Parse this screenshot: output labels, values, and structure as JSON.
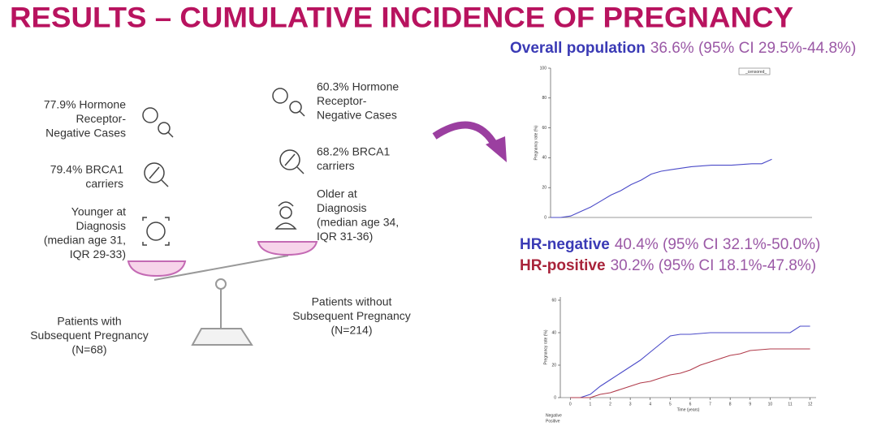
{
  "header": {
    "title": "RESULTS – CUMULATIVE INCIDENCE OF PREGNANCY"
  },
  "with_pregnancy": {
    "facts": [
      {
        "lines": [
          "77.9% Hormone",
          "Receptor-",
          "Negative Cases"
        ]
      },
      {
        "lines": [
          "79.4% BRCA1",
          "carriers"
        ]
      },
      {
        "lines": [
          "Younger at",
          "Diagnosis",
          "(median age 31,",
          "IQR 29-33)"
        ]
      }
    ],
    "group": {
      "lines": [
        "Patients with",
        "Subsequent Pregnancy",
        "(N=68)"
      ]
    }
  },
  "without_pregnancy": {
    "facts": [
      {
        "lines": [
          "60.3% Hormone",
          "Receptor-",
          "Negative Cases"
        ]
      },
      {
        "lines": [
          "68.2% BRCA1",
          "carriers"
        ]
      },
      {
        "lines": [
          "Older at",
          "Diagnosis",
          "(median age 34,",
          "IQR 31-36)"
        ]
      }
    ],
    "group": {
      "lines": [
        "Patients without",
        "Subsequent Pregnancy",
        "(N=214)"
      ]
    }
  },
  "overall": {
    "label": "Overall population",
    "estimate": "36.6% (95% CI 29.5%-44.8%)"
  },
  "hr": [
    {
      "label": "HR-negative",
      "estimate": "40.4% (95% CI 32.1%-50.0%)"
    },
    {
      "label": "HR-positive",
      "estimate": "30.2% (95% CI 18.1%-47.8%)"
    }
  ],
  "chart_data": [
    {
      "type": "line",
      "y_label": "Pregnancy rate (%)",
      "legend": "_censored_",
      "xlim": [
        0,
        13
      ],
      "ylim": [
        0,
        100
      ],
      "yticks": [
        0,
        20,
        40,
        60,
        80,
        100
      ],
      "series": [
        {
          "color": "#4a4ac8",
          "x": [
            0,
            0.5,
            1,
            1.5,
            2,
            2.5,
            3,
            3.5,
            4,
            4.5,
            5,
            5.5,
            6,
            7,
            8,
            9,
            10,
            10.5,
            11
          ],
          "values": [
            0,
            0,
            1,
            4,
            7,
            11,
            15,
            18,
            22,
            25,
            29,
            31,
            32,
            34,
            35,
            35,
            36,
            36,
            39
          ]
        }
      ]
    },
    {
      "type": "line",
      "y_label": "Pregnancy rate (%)",
      "x_label": "Time (years)",
      "xlim": [
        -0.5,
        12.3
      ],
      "ylim": [
        0,
        62
      ],
      "yticks": [
        0,
        20,
        40,
        60
      ],
      "xticks": [
        0,
        1,
        2,
        3,
        4,
        5,
        6,
        7,
        8,
        9,
        10,
        11,
        12
      ],
      "series": [
        {
          "name": "Negative",
          "color": "#4a4ac8",
          "x": [
            0,
            0.5,
            1,
            1.5,
            2,
            2.5,
            3,
            3.5,
            4,
            4.5,
            5,
            5.5,
            6,
            7,
            8,
            9,
            10,
            11,
            11.5,
            12
          ],
          "values": [
            0,
            0,
            2,
            7,
            11,
            15,
            19,
            23,
            28,
            33,
            38,
            39,
            39,
            40,
            40,
            40,
            40,
            40,
            44,
            44
          ]
        },
        {
          "name": "Positive",
          "color": "#b03a4a",
          "x": [
            0,
            1,
            1.5,
            2,
            2.5,
            3,
            3.5,
            4,
            4.5,
            5,
            5.5,
            6,
            6.5,
            7,
            7.5,
            8,
            8.5,
            9,
            10,
            11,
            12
          ],
          "values": [
            0,
            0,
            2,
            3,
            5,
            7,
            9,
            10,
            12,
            14,
            15,
            17,
            20,
            22,
            24,
            26,
            27,
            29,
            30,
            30,
            30
          ]
        }
      ]
    }
  ]
}
